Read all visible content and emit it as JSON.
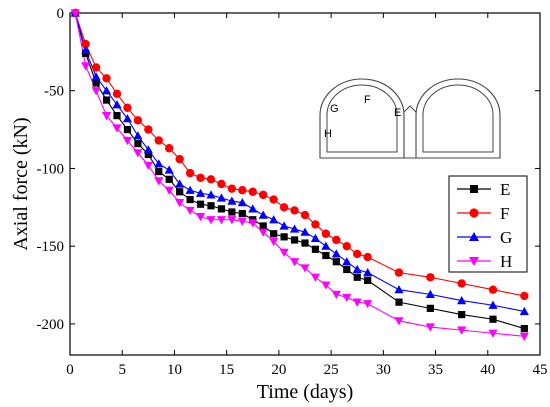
{
  "chart_data": {
    "type": "line",
    "title": "",
    "xlabel": "Time (days)",
    "ylabel": "Axial force (kN)",
    "xlim": [
      0,
      45
    ],
    "ylim": [
      -220,
      0
    ],
    "xticks": [
      0,
      5,
      10,
      15,
      20,
      25,
      30,
      35,
      40,
      45
    ],
    "yticks": [
      0,
      -50,
      -100,
      -150,
      -200
    ],
    "grid": false,
    "legend_position": "right",
    "series": [
      {
        "name": "E",
        "color": "#000000",
        "marker": "square",
        "points": [
          [
            0.5,
            0
          ],
          [
            1.5,
            -26
          ],
          [
            2.5,
            -45
          ],
          [
            3.5,
            -56
          ],
          [
            4.5,
            -66
          ],
          [
            5.5,
            -75
          ],
          [
            6.5,
            -84
          ],
          [
            7.5,
            -91
          ],
          [
            8.5,
            -102
          ],
          [
            9.5,
            -107
          ],
          [
            10.5,
            -115
          ],
          [
            11.5,
            -120
          ],
          [
            12.5,
            -123
          ],
          [
            13.5,
            -124
          ],
          [
            14.5,
            -126
          ],
          [
            15.5,
            -128
          ],
          [
            16.5,
            -129
          ],
          [
            17.5,
            -133
          ],
          [
            18.5,
            -137
          ],
          [
            19.5,
            -142
          ],
          [
            20.5,
            -144
          ],
          [
            21.5,
            -146
          ],
          [
            22.5,
            -148
          ],
          [
            23.5,
            -152
          ],
          [
            24.5,
            -156
          ],
          [
            25.5,
            -160
          ],
          [
            26.5,
            -165
          ],
          [
            27.5,
            -170
          ],
          [
            28.5,
            -172
          ],
          [
            31.5,
            -186
          ],
          [
            34.5,
            -190
          ],
          [
            37.5,
            -194
          ],
          [
            40.5,
            -197
          ],
          [
            43.5,
            -203
          ]
        ]
      },
      {
        "name": "F",
        "color": "#ff0000",
        "marker": "circle",
        "points": [
          [
            0.5,
            0
          ],
          [
            1.5,
            -20
          ],
          [
            2.5,
            -35
          ],
          [
            3.5,
            -42
          ],
          [
            4.5,
            -52
          ],
          [
            5.5,
            -61
          ],
          [
            6.5,
            -69
          ],
          [
            7.5,
            -75
          ],
          [
            8.5,
            -82
          ],
          [
            9.5,
            -87
          ],
          [
            10.5,
            -94
          ],
          [
            11.5,
            -103
          ],
          [
            12.5,
            -106
          ],
          [
            13.5,
            -107
          ],
          [
            14.5,
            -110
          ],
          [
            15.5,
            -113
          ],
          [
            16.5,
            -114
          ],
          [
            17.5,
            -115
          ],
          [
            18.5,
            -117
          ],
          [
            19.5,
            -120
          ],
          [
            20.5,
            -125
          ],
          [
            21.5,
            -127
          ],
          [
            22.5,
            -130
          ],
          [
            23.5,
            -136
          ],
          [
            24.5,
            -142
          ],
          [
            25.5,
            -146
          ],
          [
            26.5,
            -150
          ],
          [
            27.5,
            -155
          ],
          [
            28.5,
            -157
          ],
          [
            31.5,
            -167
          ],
          [
            34.5,
            -170
          ],
          [
            37.5,
            -174
          ],
          [
            40.5,
            -178
          ],
          [
            43.5,
            -182
          ]
        ]
      },
      {
        "name": "G",
        "color": "#0000ff",
        "marker": "triangle-up",
        "points": [
          [
            0.5,
            0
          ],
          [
            1.5,
            -24
          ],
          [
            2.5,
            -41
          ],
          [
            3.5,
            -50
          ],
          [
            4.5,
            -59
          ],
          [
            5.5,
            -68
          ],
          [
            6.5,
            -79
          ],
          [
            7.5,
            -88
          ],
          [
            8.5,
            -97
          ],
          [
            9.5,
            -101
          ],
          [
            10.5,
            -110
          ],
          [
            11.5,
            -114
          ],
          [
            12.5,
            -116
          ],
          [
            13.5,
            -117
          ],
          [
            14.5,
            -119
          ],
          [
            15.5,
            -121
          ],
          [
            16.5,
            -122
          ],
          [
            17.5,
            -126
          ],
          [
            18.5,
            -130
          ],
          [
            19.5,
            -133
          ],
          [
            20.5,
            -137
          ],
          [
            21.5,
            -139
          ],
          [
            22.5,
            -141
          ],
          [
            23.5,
            -145
          ],
          [
            24.5,
            -150
          ],
          [
            25.5,
            -155
          ],
          [
            26.5,
            -160
          ],
          [
            27.5,
            -165
          ],
          [
            28.5,
            -167
          ],
          [
            31.5,
            -178
          ],
          [
            34.5,
            -181
          ],
          [
            37.5,
            -185
          ],
          [
            40.5,
            -188
          ],
          [
            43.5,
            -192
          ]
        ]
      },
      {
        "name": "H",
        "color": "#ff00ff",
        "marker": "triangle-down",
        "points": [
          [
            0.5,
            0
          ],
          [
            1.5,
            -34
          ],
          [
            2.5,
            -50
          ],
          [
            3.5,
            -66
          ],
          [
            4.5,
            -74
          ],
          [
            5.5,
            -82
          ],
          [
            6.5,
            -90
          ],
          [
            7.5,
            -98
          ],
          [
            8.5,
            -108
          ],
          [
            9.5,
            -114
          ],
          [
            10.5,
            -122
          ],
          [
            11.5,
            -127
          ],
          [
            12.5,
            -131
          ],
          [
            13.5,
            -133
          ],
          [
            14.5,
            -133
          ],
          [
            15.5,
            -133
          ],
          [
            16.5,
            -134
          ],
          [
            17.5,
            -135
          ],
          [
            18.5,
            -141
          ],
          [
            19.5,
            -147
          ],
          [
            20.5,
            -154
          ],
          [
            21.5,
            -160
          ],
          [
            22.5,
            -164
          ],
          [
            23.5,
            -170
          ],
          [
            24.5,
            -175
          ],
          [
            25.5,
            -181
          ],
          [
            26.5,
            -183
          ],
          [
            27.5,
            -186
          ],
          [
            28.5,
            -187
          ],
          [
            31.5,
            -198
          ],
          [
            34.5,
            -202
          ],
          [
            37.5,
            -204
          ],
          [
            40.5,
            -206
          ],
          [
            43.5,
            -208
          ]
        ]
      }
    ],
    "inset": {
      "labels": [
        {
          "text": "G",
          "color": "#0000ff"
        },
        {
          "text": "F",
          "color": "#ff0000"
        },
        {
          "text": "E",
          "color": "#000000"
        },
        {
          "text": "H",
          "color": "#ff00ff"
        }
      ]
    }
  }
}
